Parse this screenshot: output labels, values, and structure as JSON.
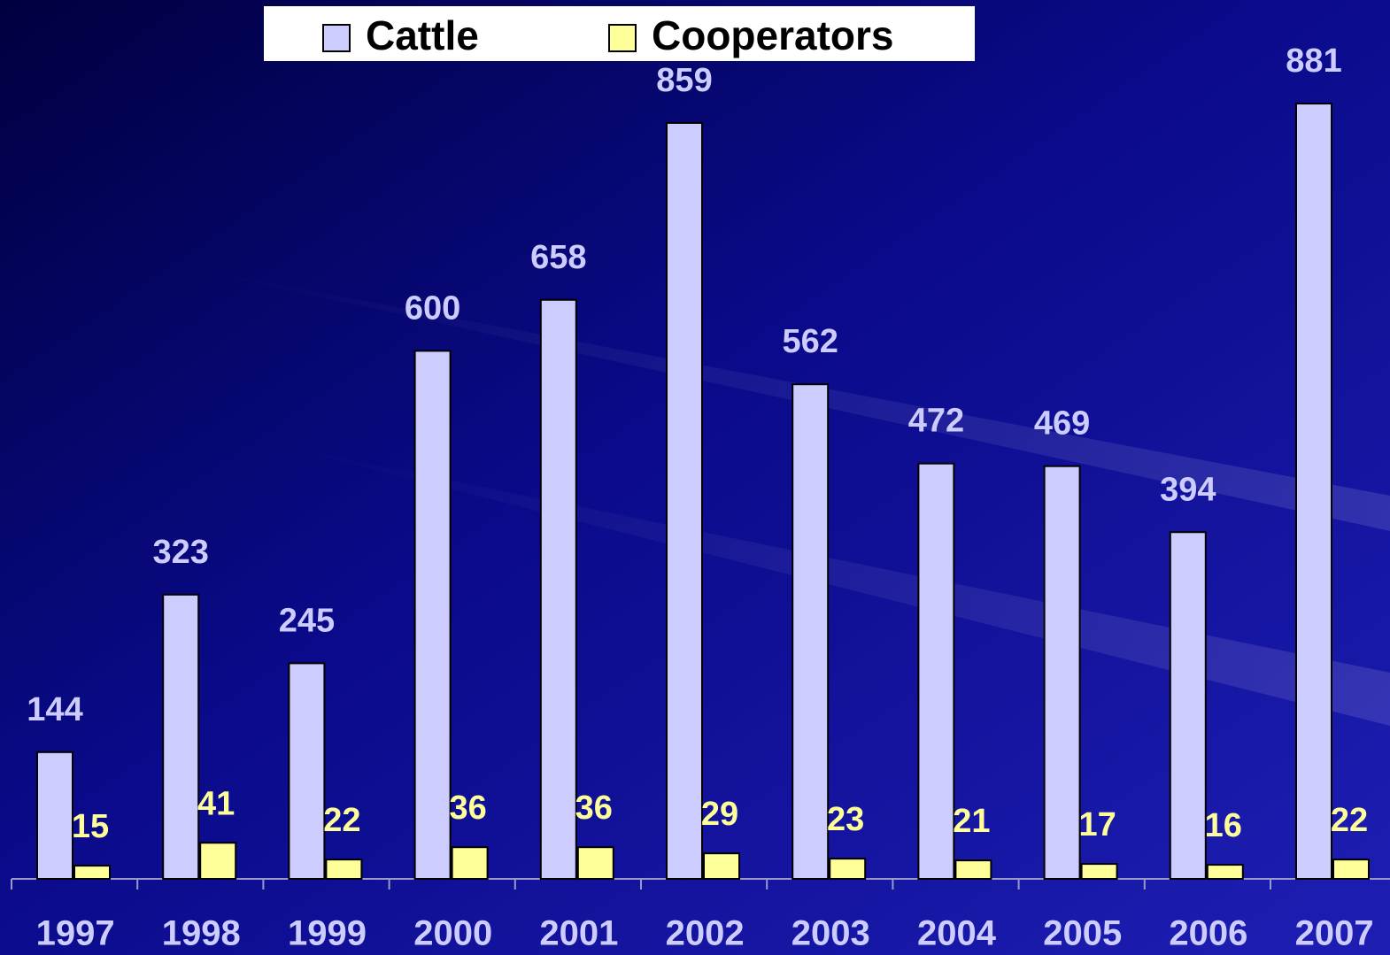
{
  "chart_data": {
    "type": "bar",
    "categories": [
      "1997",
      "1998",
      "1999",
      "2000",
      "2001",
      "2002",
      "2003",
      "2004",
      "2005",
      "2006",
      "2007"
    ],
    "series": [
      {
        "name": "Cattle",
        "color": "#ccccff",
        "values": [
          144,
          323,
          245,
          600,
          658,
          859,
          562,
          472,
          469,
          394,
          881
        ]
      },
      {
        "name": "Cooperators",
        "color": "#ffff99",
        "values": [
          15,
          41,
          22,
          36,
          36,
          29,
          23,
          21,
          17,
          16,
          22
        ]
      }
    ]
  }
}
